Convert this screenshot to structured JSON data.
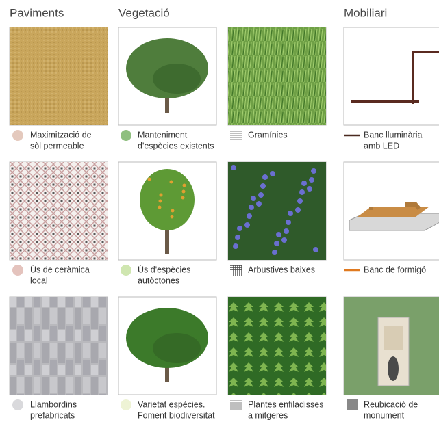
{
  "headers": [
    "Paviments",
    "Vegetació",
    "Mobiliari"
  ],
  "items": [
    {
      "label": [
        "Maximització de",
        "sòl permeable"
      ]
    },
    {
      "label": [
        "Manteniment",
        "d'espècies existents"
      ]
    },
    {
      "label": [
        "Gramínies"
      ]
    },
    {
      "label": [
        "Banc lluminària",
        "amb LED"
      ]
    },
    {
      "label": [
        "Ús de ceràmica",
        "local"
      ]
    },
    {
      "label": [
        "Ús d'espècies",
        "autòctones"
      ]
    },
    {
      "label": [
        "Arbustives baixes"
      ]
    },
    {
      "label": [
        "Banc de formigó"
      ]
    },
    {
      "label": [
        "Llambordins",
        "prefabricats"
      ]
    },
    {
      "label": [
        "Varietat espècies.",
        "Foment biodiversitat"
      ]
    },
    {
      "label": [
        "Plantes enfiladisses",
        "a mitgeres"
      ]
    },
    {
      "label": [
        "Reubicació de",
        "monument"
      ]
    }
  ]
}
